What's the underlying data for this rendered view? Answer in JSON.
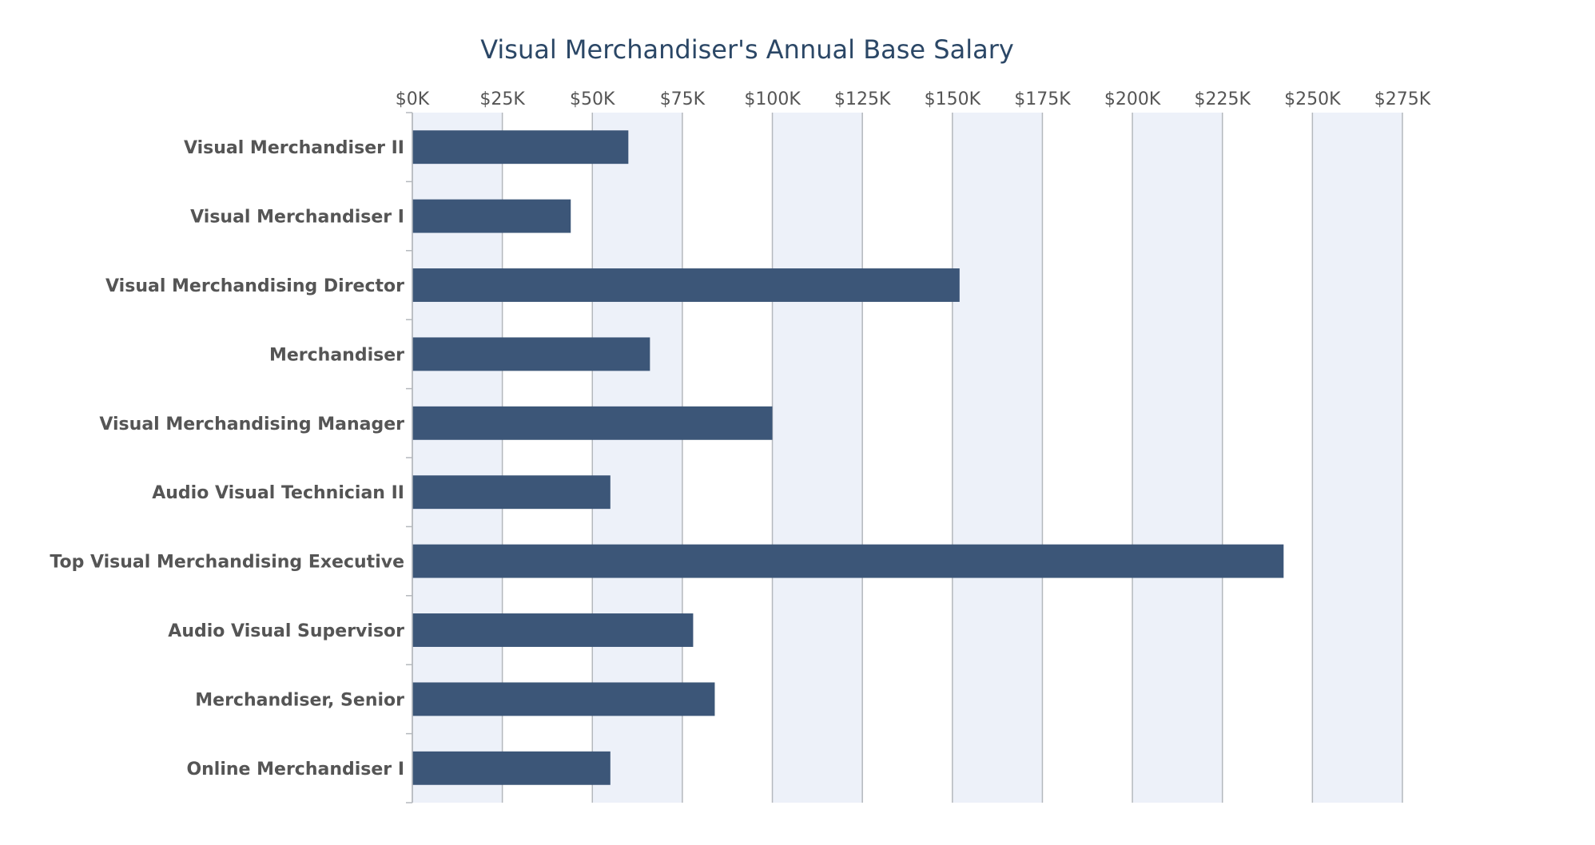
{
  "chart_data": {
    "type": "bar",
    "orientation": "horizontal",
    "title": "Visual Merchandiser's Annual Base Salary",
    "xlabel": "",
    "ylabel": "",
    "xlim": [
      0,
      275000
    ],
    "x_ticks": [
      0,
      25000,
      50000,
      75000,
      100000,
      125000,
      150000,
      175000,
      200000,
      225000,
      250000,
      275000
    ],
    "x_tick_labels": [
      "$0K",
      "$25K",
      "$50K",
      "$75K",
      "$100K",
      "$125K",
      "$150K",
      "$175K",
      "$200K",
      "$225K",
      "$250K",
      "$275K"
    ],
    "axis_position": "top",
    "grid": true,
    "alternating_bands": true,
    "categories": [
      "Visual Merchandiser II",
      "Visual Merchandiser I",
      "Visual Merchandising Director",
      "Merchandiser",
      "Visual Merchandising Manager",
      "Audio Visual Technician II",
      "Top Visual Merchandising Executive",
      "Audio Visual Supervisor",
      "Merchandiser, Senior",
      "Online Merchandiser I"
    ],
    "values": [
      60000,
      44000,
      152000,
      66000,
      100000,
      55000,
      242000,
      78000,
      84000,
      55000
    ],
    "colors": {
      "bar": "#3c5678",
      "band": "#edf1f9",
      "grid": "#b4b8bd",
      "title": "#2b4766",
      "label": "#555555"
    }
  }
}
